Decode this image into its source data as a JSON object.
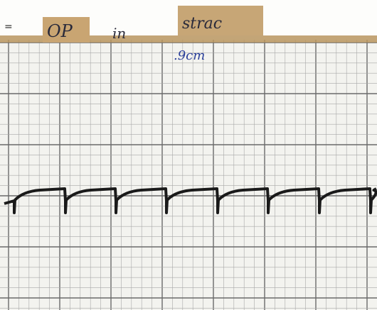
{
  "labels": {
    "left": "OP",
    "middle": "in",
    "right": "strac",
    "scale": ".9cm"
  }
}
